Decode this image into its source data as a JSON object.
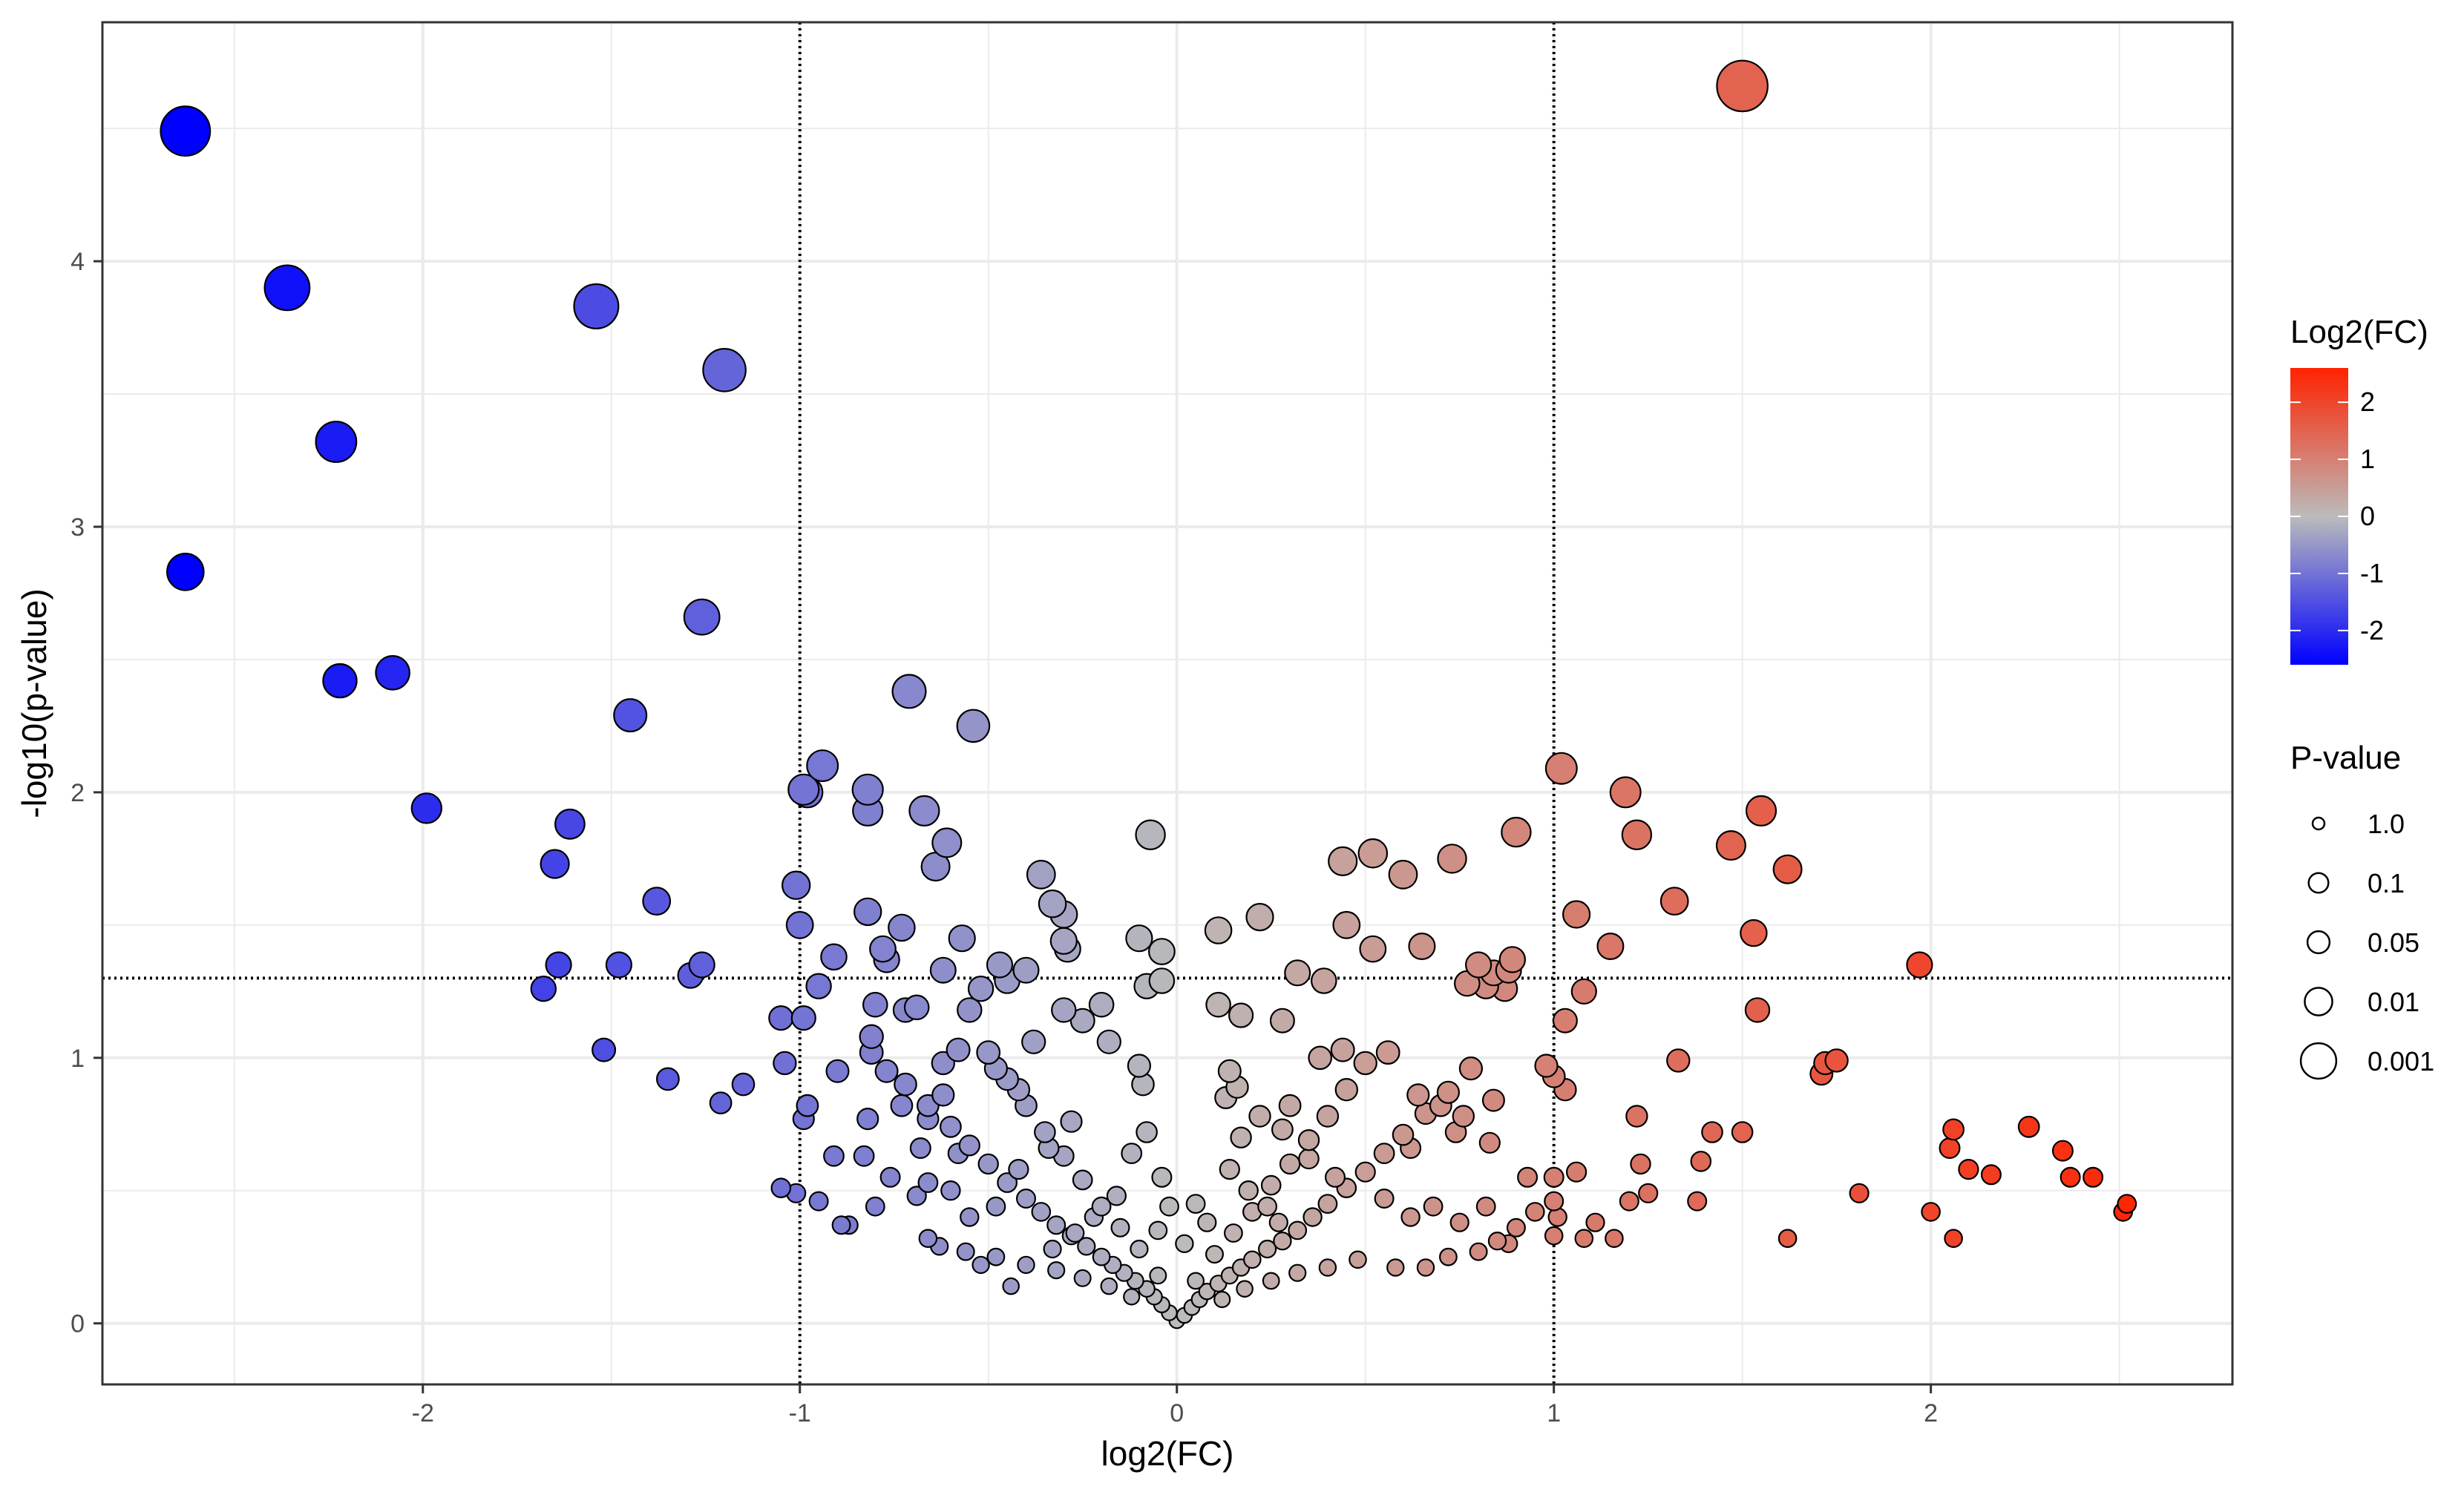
{
  "chart_data": {
    "type": "scatter",
    "title": "",
    "xlabel": "log2(FC)",
    "ylabel": "-log10(p-value)",
    "xlim": [
      -2.85,
      2.8
    ],
    "ylim": [
      -0.23,
      4.9
    ],
    "x_ticks": [
      -2,
      -1,
      0,
      1,
      2
    ],
    "x_tick_labels": [
      "-2",
      "-1",
      "0",
      "1",
      "2"
    ],
    "y_ticks": [
      0,
      1,
      2,
      3,
      4
    ],
    "y_tick_labels": [
      "0",
      "1",
      "2",
      "3",
      "4"
    ],
    "grid": true,
    "threshold_lines": {
      "vertical": [
        -1,
        1
      ],
      "horizontal": [
        1.3
      ]
    },
    "color_legend": {
      "title": "Log2(FC)",
      "ticks": [
        2,
        1,
        0,
        -1,
        -2
      ],
      "tick_labels": [
        "2",
        "1",
        "0",
        "-1",
        "-2"
      ],
      "range": [
        -2.6,
        2.6
      ],
      "colors": {
        "low": "#0000ff",
        "mid": "#bbbbbb",
        "high": "#ff2200"
      }
    },
    "size_legend": {
      "title": "P-value",
      "labels": [
        "1.0",
        "0.1",
        "0.05",
        "0.01",
        "0.001"
      ],
      "levels": [
        1.0,
        0.1,
        0.05,
        0.01,
        0.001
      ]
    },
    "points": [
      {
        "x": -2.63,
        "y": 4.49
      },
      {
        "x": -2.36,
        "y": 3.9
      },
      {
        "x": -2.23,
        "y": 3.32
      },
      {
        "x": -2.63,
        "y": 2.83
      },
      {
        "x": -2.22,
        "y": 2.42
      },
      {
        "x": -2.08,
        "y": 2.45
      },
      {
        "x": -1.99,
        "y": 1.94
      },
      {
        "x": -1.54,
        "y": 3.83
      },
      {
        "x": -1.2,
        "y": 3.59
      },
      {
        "x": -1.26,
        "y": 2.66
      },
      {
        "x": -1.45,
        "y": 2.29
      },
      {
        "x": -1.61,
        "y": 1.88
      },
      {
        "x": -1.65,
        "y": 1.73
      },
      {
        "x": -1.38,
        "y": 1.59
      },
      {
        "x": -1.64,
        "y": 1.35
      },
      {
        "x": -1.48,
        "y": 1.35
      },
      {
        "x": -1.26,
        "y": 1.35
      },
      {
        "x": -1.29,
        "y": 1.31
      },
      {
        "x": -1.68,
        "y": 1.26
      },
      {
        "x": -1.52,
        "y": 1.03
      },
      {
        "x": -1.35,
        "y": 0.92
      },
      {
        "x": -1.15,
        "y": 0.9
      },
      {
        "x": -1.21,
        "y": 0.83
      },
      {
        "x": 1.5,
        "y": 4.66
      },
      {
        "x": 1.02,
        "y": 2.09
      },
      {
        "x": 1.19,
        "y": 2.0
      },
      {
        "x": 1.55,
        "y": 1.93
      },
      {
        "x": 1.22,
        "y": 1.84
      },
      {
        "x": 1.47,
        "y": 1.8
      },
      {
        "x": 1.62,
        "y": 1.71
      },
      {
        "x": 1.32,
        "y": 1.59
      },
      {
        "x": 1.06,
        "y": 1.54
      },
      {
        "x": 1.53,
        "y": 1.47
      },
      {
        "x": 1.15,
        "y": 1.42
      },
      {
        "x": 1.97,
        "y": 1.35
      },
      {
        "x": 1.08,
        "y": 1.25
      },
      {
        "x": 1.54,
        "y": 1.18
      },
      {
        "x": 1.72,
        "y": 0.98
      },
      {
        "x": 1.71,
        "y": 0.94
      },
      {
        "x": 1.75,
        "y": 0.99
      },
      {
        "x": 1.33,
        "y": 0.99
      },
      {
        "x": 2.06,
        "y": 0.73
      },
      {
        "x": 2.26,
        "y": 0.74
      },
      {
        "x": 2.35,
        "y": 0.65
      },
      {
        "x": 2.05,
        "y": 0.66
      },
      {
        "x": 2.1,
        "y": 0.58
      },
      {
        "x": 2.16,
        "y": 0.56
      },
      {
        "x": 2.37,
        "y": 0.55
      },
      {
        "x": 2.43,
        "y": 0.55
      },
      {
        "x": 2.52,
        "y": 0.45
      },
      {
        "x": 2.51,
        "y": 0.42
      },
      {
        "x": 2.0,
        "y": 0.42
      },
      {
        "x": 2.06,
        "y": 0.32
      },
      {
        "x": 1.81,
        "y": 0.49
      },
      {
        "x": 1.62,
        "y": 0.32
      },
      {
        "x": 1.5,
        "y": 0.72
      },
      {
        "x": 1.42,
        "y": 0.72
      },
      {
        "x": 1.39,
        "y": 0.61
      },
      {
        "x": 1.38,
        "y": 0.46
      },
      {
        "x": 1.22,
        "y": 0.78
      },
      {
        "x": 1.23,
        "y": 0.6
      },
      {
        "x": 1.25,
        "y": 0.49
      },
      {
        "x": 1.2,
        "y": 0.46
      },
      {
        "x": 1.16,
        "y": 0.32
      },
      {
        "x": -0.94,
        "y": 2.1
      },
      {
        "x": -0.99,
        "y": 2.01
      },
      {
        "x": -0.98,
        "y": 2.0
      },
      {
        "x": -0.82,
        "y": 2.01
      },
      {
        "x": -0.82,
        "y": 1.93
      },
      {
        "x": -0.67,
        "y": 1.93
      },
      {
        "x": -0.71,
        "y": 2.38
      },
      {
        "x": -0.54,
        "y": 2.25
      },
      {
        "x": -0.61,
        "y": 1.81
      },
      {
        "x": -0.64,
        "y": 1.72
      },
      {
        "x": -1.01,
        "y": 1.65
      },
      {
        "x": -1.0,
        "y": 1.5
      },
      {
        "x": -0.82,
        "y": 1.55
      },
      {
        "x": -0.73,
        "y": 1.49
      },
      {
        "x": -0.91,
        "y": 1.38
      },
      {
        "x": -0.95,
        "y": 1.27
      },
      {
        "x": -0.78,
        "y": 1.41
      },
      {
        "x": -0.77,
        "y": 1.37
      },
      {
        "x": -0.57,
        "y": 1.45
      },
      {
        "x": -0.62,
        "y": 1.33
      },
      {
        "x": -1.05,
        "y": 1.15
      },
      {
        "x": -0.99,
        "y": 1.15
      },
      {
        "x": -0.8,
        "y": 1.2
      },
      {
        "x": -0.72,
        "y": 1.18
      },
      {
        "x": -0.69,
        "y": 1.19
      },
      {
        "x": -0.81,
        "y": 1.08
      },
      {
        "x": -0.81,
        "y": 1.02
      },
      {
        "x": -0.77,
        "y": 0.95
      },
      {
        "x": -0.9,
        "y": 0.95
      },
      {
        "x": -1.04,
        "y": 0.98
      },
      {
        "x": -0.98,
        "y": 0.82
      },
      {
        "x": -0.99,
        "y": 0.77
      },
      {
        "x": -0.82,
        "y": 0.77
      },
      {
        "x": -0.73,
        "y": 0.82
      },
      {
        "x": -0.66,
        "y": 0.77
      },
      {
        "x": -0.91,
        "y": 0.63
      },
      {
        "x": -0.83,
        "y": 0.63
      },
      {
        "x": -1.05,
        "y": 0.51
      },
      {
        "x": -1.01,
        "y": 0.49
      },
      {
        "x": -0.95,
        "y": 0.46
      },
      {
        "x": -0.87,
        "y": 0.37
      },
      {
        "x": -0.89,
        "y": 0.37
      },
      {
        "x": -0.8,
        "y": 0.44
      },
      {
        "x": -0.76,
        "y": 0.55
      },
      {
        "x": -0.69,
        "y": 0.48
      },
      {
        "x": -0.66,
        "y": 0.32
      },
      {
        "x": -0.63,
        "y": 0.29
      },
      {
        "x": -0.07,
        "y": 1.84
      },
      {
        "x": -0.36,
        "y": 1.69
      },
      {
        "x": -0.33,
        "y": 1.58
      },
      {
        "x": -0.3,
        "y": 1.54
      },
      {
        "x": -0.3,
        "y": 1.44
      },
      {
        "x": -0.29,
        "y": 1.41
      },
      {
        "x": -0.1,
        "y": 1.45
      },
      {
        "x": -0.04,
        "y": 1.4
      },
      {
        "x": -0.08,
        "y": 1.27
      },
      {
        "x": -0.04,
        "y": 1.29
      },
      {
        "x": 0.11,
        "y": 1.48
      },
      {
        "x": 0.22,
        "y": 1.53
      },
      {
        "x": 0.44,
        "y": 1.74
      },
      {
        "x": 0.52,
        "y": 1.77
      },
      {
        "x": 0.6,
        "y": 1.69
      },
      {
        "x": 0.73,
        "y": 1.75
      },
      {
        "x": 0.9,
        "y": 1.85
      },
      {
        "x": 0.45,
        "y": 1.5
      },
      {
        "x": 0.52,
        "y": 1.41
      },
      {
        "x": 0.65,
        "y": 1.42
      },
      {
        "x": 0.32,
        "y": 1.32
      },
      {
        "x": 0.39,
        "y": 1.29
      },
      {
        "x": 0.11,
        "y": 1.2
      },
      {
        "x": 0.17,
        "y": 1.16
      },
      {
        "x": 0.28,
        "y": 1.14
      },
      {
        "x": 0.8,
        "y": 1.35
      },
      {
        "x": 0.84,
        "y": 1.32
      },
      {
        "x": 0.88,
        "y": 1.33
      },
      {
        "x": 0.89,
        "y": 1.37
      },
      {
        "x": 0.77,
        "y": 1.28
      },
      {
        "x": 0.82,
        "y": 1.27
      },
      {
        "x": 0.87,
        "y": 1.26
      },
      {
        "x": 1.03,
        "y": 1.14
      },
      {
        "x": 0.98,
        "y": 0.97
      },
      {
        "x": 1.0,
        "y": 0.93
      },
      {
        "x": 1.03,
        "y": 0.88
      },
      {
        "x": 0.93,
        "y": 0.55
      },
      {
        "x": 0.95,
        "y": 0.42
      },
      {
        "x": 1.0,
        "y": 0.55
      },
      {
        "x": 1.0,
        "y": 0.46
      },
      {
        "x": 1.01,
        "y": 0.4
      },
      {
        "x": 1.06,
        "y": 0.57
      },
      {
        "x": 1.08,
        "y": 0.32
      },
      {
        "x": 1.11,
        "y": 0.38
      },
      {
        "x": 1.0,
        "y": 0.33
      },
      {
        "x": 0.0,
        "y": 0.01
      },
      {
        "x": 0.02,
        "y": 0.03
      },
      {
        "x": -0.02,
        "y": 0.04
      },
      {
        "x": 0.04,
        "y": 0.06
      },
      {
        "x": -0.04,
        "y": 0.07
      },
      {
        "x": 0.06,
        "y": 0.09
      },
      {
        "x": -0.06,
        "y": 0.1
      },
      {
        "x": 0.08,
        "y": 0.12
      },
      {
        "x": -0.08,
        "y": 0.13
      },
      {
        "x": 0.11,
        "y": 0.15
      },
      {
        "x": -0.11,
        "y": 0.16
      },
      {
        "x": 0.14,
        "y": 0.18
      },
      {
        "x": -0.14,
        "y": 0.19
      },
      {
        "x": 0.17,
        "y": 0.21
      },
      {
        "x": -0.17,
        "y": 0.22
      },
      {
        "x": 0.2,
        "y": 0.24
      },
      {
        "x": -0.2,
        "y": 0.25
      },
      {
        "x": 0.24,
        "y": 0.28
      },
      {
        "x": -0.24,
        "y": 0.29
      },
      {
        "x": 0.28,
        "y": 0.31
      },
      {
        "x": -0.28,
        "y": 0.33
      },
      {
        "x": 0.32,
        "y": 0.35
      },
      {
        "x": -0.32,
        "y": 0.37
      },
      {
        "x": 0.36,
        "y": 0.4
      },
      {
        "x": -0.36,
        "y": 0.42
      },
      {
        "x": 0.4,
        "y": 0.45
      },
      {
        "x": -0.4,
        "y": 0.47
      },
      {
        "x": 0.45,
        "y": 0.51
      },
      {
        "x": -0.45,
        "y": 0.53
      },
      {
        "x": 0.5,
        "y": 0.57
      },
      {
        "x": -0.5,
        "y": 0.6
      },
      {
        "x": 0.55,
        "y": 0.64
      },
      {
        "x": -0.55,
        "y": 0.67
      },
      {
        "x": 0.6,
        "y": 0.71
      },
      {
        "x": -0.6,
        "y": 0.74
      },
      {
        "x": 0.66,
        "y": 0.79
      },
      {
        "x": -0.66,
        "y": 0.82
      },
      {
        "x": 0.72,
        "y": 0.87
      },
      {
        "x": -0.72,
        "y": 0.9
      },
      {
        "x": 0.78,
        "y": 0.96
      },
      {
        "x": 0.05,
        "y": 0.16
      },
      {
        "x": -0.05,
        "y": 0.18
      },
      {
        "x": 0.1,
        "y": 0.26
      },
      {
        "x": -0.1,
        "y": 0.28
      },
      {
        "x": 0.15,
        "y": 0.34
      },
      {
        "x": -0.15,
        "y": 0.36
      },
      {
        "x": 0.2,
        "y": 0.42
      },
      {
        "x": -0.2,
        "y": 0.44
      },
      {
        "x": 0.25,
        "y": 0.52
      },
      {
        "x": -0.25,
        "y": 0.54
      },
      {
        "x": 0.3,
        "y": 0.6
      },
      {
        "x": -0.3,
        "y": 0.63
      },
      {
        "x": 0.35,
        "y": 0.69
      },
      {
        "x": -0.35,
        "y": 0.72
      },
      {
        "x": 0.4,
        "y": 0.78
      },
      {
        "x": -0.4,
        "y": 0.82
      },
      {
        "x": 0.45,
        "y": 0.88
      },
      {
        "x": -0.45,
        "y": 0.92
      },
      {
        "x": 0.5,
        "y": 0.98
      },
      {
        "x": -0.5,
        "y": 1.02
      },
      {
        "x": 0.12,
        "y": 0.09
      },
      {
        "x": -0.12,
        "y": 0.1
      },
      {
        "x": 0.18,
        "y": 0.13
      },
      {
        "x": -0.18,
        "y": 0.14
      },
      {
        "x": 0.25,
        "y": 0.16
      },
      {
        "x": -0.25,
        "y": 0.17
      },
      {
        "x": 0.32,
        "y": 0.19
      },
      {
        "x": -0.32,
        "y": 0.2
      },
      {
        "x": 0.4,
        "y": 0.21
      },
      {
        "x": -0.4,
        "y": 0.22
      },
      {
        "x": 0.48,
        "y": 0.24
      },
      {
        "x": -0.48,
        "y": 0.25
      },
      {
        "x": 0.58,
        "y": 0.21
      },
      {
        "x": -0.56,
        "y": 0.27
      },
      {
        "x": 0.66,
        "y": 0.21
      },
      {
        "x": -0.52,
        "y": 0.22
      },
      {
        "x": 0.72,
        "y": 0.25
      },
      {
        "x": 0.8,
        "y": 0.27
      },
      {
        "x": 0.85,
        "y": 0.31
      },
      {
        "x": -0.44,
        "y": 0.14
      },
      {
        "x": 0.28,
        "y": 0.73
      },
      {
        "x": 0.35,
        "y": 0.62
      },
      {
        "x": 0.42,
        "y": 0.55
      },
      {
        "x": 0.55,
        "y": 0.47
      },
      {
        "x": 0.62,
        "y": 0.4
      },
      {
        "x": 0.68,
        "y": 0.44
      },
      {
        "x": 0.75,
        "y": 0.38
      },
      {
        "x": 0.82,
        "y": 0.44
      },
      {
        "x": 0.88,
        "y": 0.3
      },
      {
        "x": 0.9,
        "y": 0.36
      },
      {
        "x": -0.28,
        "y": 0.76
      },
      {
        "x": -0.34,
        "y": 0.66
      },
      {
        "x": -0.42,
        "y": 0.58
      },
      {
        "x": -0.48,
        "y": 0.44
      },
      {
        "x": -0.55,
        "y": 0.4
      },
      {
        "x": -0.6,
        "y": 0.5
      },
      {
        "x": -0.66,
        "y": 0.53
      },
      {
        "x": -0.58,
        "y": 0.64
      },
      {
        "x": -0.62,
        "y": 0.86
      },
      {
        "x": -0.68,
        "y": 0.66
      },
      {
        "x": 0.14,
        "y": 0.95
      },
      {
        "x": 0.16,
        "y": 0.89
      },
      {
        "x": 0.13,
        "y": 0.85
      },
      {
        "x": 0.22,
        "y": 0.78
      },
      {
        "x": 0.17,
        "y": 0.7
      },
      {
        "x": 0.3,
        "y": 0.82
      },
      {
        "x": 0.38,
        "y": 1.0
      },
      {
        "x": 0.44,
        "y": 1.03
      },
      {
        "x": 0.56,
        "y": 1.02
      },
      {
        "x": 0.64,
        "y": 0.86
      },
      {
        "x": 0.7,
        "y": 0.82
      },
      {
        "x": 0.76,
        "y": 0.78
      },
      {
        "x": 0.83,
        "y": 0.68
      },
      {
        "x": 0.84,
        "y": 0.84
      },
      {
        "x": 0.74,
        "y": 0.72
      },
      {
        "x": 0.62,
        "y": 0.66
      },
      {
        "x": -0.1,
        "y": 0.97
      },
      {
        "x": -0.09,
        "y": 0.9
      },
      {
        "x": -0.18,
        "y": 1.06
      },
      {
        "x": -0.2,
        "y": 1.2
      },
      {
        "x": -0.25,
        "y": 1.14
      },
      {
        "x": -0.3,
        "y": 1.18
      },
      {
        "x": -0.38,
        "y": 1.06
      },
      {
        "x": -0.45,
        "y": 1.29
      },
      {
        "x": -0.52,
        "y": 1.26
      },
      {
        "x": -0.47,
        "y": 1.35
      },
      {
        "x": -0.4,
        "y": 1.33
      },
      {
        "x": -0.55,
        "y": 1.18
      },
      {
        "x": -0.58,
        "y": 1.03
      },
      {
        "x": -0.62,
        "y": 0.98
      },
      {
        "x": -0.48,
        "y": 0.96
      },
      {
        "x": -0.42,
        "y": 0.88
      },
      {
        "x": -0.08,
        "y": 0.72
      },
      {
        "x": -0.12,
        "y": 0.64
      },
      {
        "x": -0.04,
        "y": 0.55
      },
      {
        "x": -0.02,
        "y": 0.44
      },
      {
        "x": 0.05,
        "y": 0.45
      },
      {
        "x": 0.08,
        "y": 0.38
      },
      {
        "x": -0.05,
        "y": 0.35
      },
      {
        "x": 0.02,
        "y": 0.3
      },
      {
        "x": 0.14,
        "y": 0.58
      },
      {
        "x": 0.19,
        "y": 0.5
      },
      {
        "x": 0.24,
        "y": 0.44
      },
      {
        "x": 0.27,
        "y": 0.38
      },
      {
        "x": -0.16,
        "y": 0.48
      },
      {
        "x": -0.22,
        "y": 0.4
      },
      {
        "x": -0.27,
        "y": 0.34
      },
      {
        "x": -0.33,
        "y": 0.28
      }
    ]
  }
}
